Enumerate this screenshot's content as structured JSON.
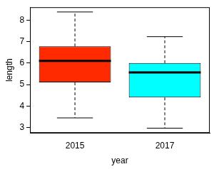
{
  "chart_data": {
    "type": "boxplot",
    "x_label": "year",
    "y_label": "length",
    "categories": [
      "2015",
      "2017"
    ],
    "boxes": [
      {
        "min": 3.45,
        "q1": 5.1,
        "median": 6.1,
        "q3": 6.78,
        "max": 8.38
      },
      {
        "min": 2.97,
        "q1": 4.4,
        "median": 5.57,
        "q3": 6.0,
        "max": 7.23
      }
    ],
    "colors": [
      "#ff2a00",
      "#00ffff"
    ],
    "ylim": [
      2.75,
      8.6
    ],
    "yticks": [
      3,
      4,
      5,
      6,
      7,
      8
    ],
    "grid": false
  }
}
